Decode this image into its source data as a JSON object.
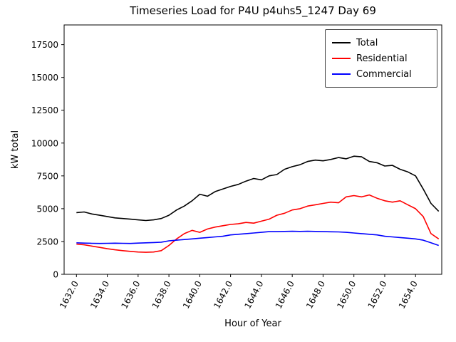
{
  "title": "Timeseries Load for P4U p4uhs5_1247  Day 69",
  "chart_data": {
    "type": "line",
    "title": "Timeseries Load for P4U p4uhs5_1247  Day 69",
    "xlabel": "Hour of Year",
    "ylabel": "kW total",
    "xlim": [
      1631.2,
      1655.7
    ],
    "ylim": [
      0,
      19000
    ],
    "grid": false,
    "legend_position": "upper right",
    "xticks": [
      1632,
      1634,
      1636,
      1638,
      1640,
      1642,
      1644,
      1646,
      1648,
      1650,
      1652,
      1654
    ],
    "xtick_labels": [
      "1632.0",
      "1634.0",
      "1636.0",
      "1638.0",
      "1640.0",
      "1642.0",
      "1644.0",
      "1646.0",
      "1648.0",
      "1650.0",
      "1652.0",
      "1654.0"
    ],
    "yticks": [
      0,
      2500,
      5000,
      7500,
      10000,
      12500,
      15000,
      17500
    ],
    "ytick_labels": [
      "0",
      "2500",
      "5000",
      "7500",
      "10000",
      "12500",
      "15000",
      "17500"
    ],
    "x": [
      1632.0,
      1632.5,
      1633.0,
      1633.5,
      1634.0,
      1634.5,
      1635.0,
      1635.5,
      1636.0,
      1636.5,
      1637.0,
      1637.5,
      1638.0,
      1638.5,
      1639.0,
      1639.5,
      1640.0,
      1640.5,
      1641.0,
      1641.5,
      1642.0,
      1642.5,
      1643.0,
      1643.5,
      1644.0,
      1644.5,
      1645.0,
      1645.5,
      1646.0,
      1646.5,
      1647.0,
      1647.5,
      1648.0,
      1648.5,
      1649.0,
      1649.5,
      1650.0,
      1650.5,
      1651.0,
      1651.5,
      1652.0,
      1652.5,
      1653.0,
      1653.5,
      1654.0,
      1654.5,
      1655.0,
      1655.5
    ],
    "series": [
      {
        "name": "Total",
        "color": "#000000",
        "values": [
          4700,
          4750,
          4600,
          4500,
          4400,
          4300,
          4250,
          4200,
          4150,
          4100,
          4150,
          4250,
          4500,
          4900,
          5200,
          5600,
          6100,
          5950,
          6300,
          6500,
          6700,
          6850,
          7100,
          7300,
          7200,
          7500,
          7600,
          8000,
          8200,
          8350,
          8600,
          8700,
          8650,
          8750,
          8900,
          8800,
          9000,
          8950,
          8600,
          8500,
          8250,
          8300,
          8000,
          7800,
          7500,
          6500,
          5400,
          4800
        ]
      },
      {
        "name": "Residential",
        "color": "#ff0000",
        "values": [
          2300,
          2250,
          2150,
          2050,
          1950,
          1870,
          1800,
          1750,
          1700,
          1680,
          1700,
          1800,
          2200,
          2700,
          3100,
          3350,
          3200,
          3450,
          3600,
          3700,
          3800,
          3850,
          3950,
          3900,
          4050,
          4200,
          4500,
          4650,
          4900,
          5000,
          5200,
          5300,
          5400,
          5500,
          5450,
          5900,
          6000,
          5900,
          6050,
          5800,
          5600,
          5500,
          5600,
          5300,
          5000,
          4400,
          3100,
          2700
        ]
      },
      {
        "name": "Commercial",
        "color": "#0000ff",
        "values": [
          2400,
          2380,
          2360,
          2350,
          2360,
          2370,
          2360,
          2350,
          2380,
          2400,
          2420,
          2450,
          2550,
          2600,
          2650,
          2700,
          2750,
          2800,
          2850,
          2900,
          3000,
          3050,
          3100,
          3150,
          3200,
          3250,
          3250,
          3270,
          3280,
          3270,
          3280,
          3270,
          3250,
          3240,
          3230,
          3200,
          3150,
          3100,
          3050,
          3000,
          2900,
          2850,
          2800,
          2750,
          2700,
          2600,
          2400,
          2200
        ]
      }
    ]
  }
}
